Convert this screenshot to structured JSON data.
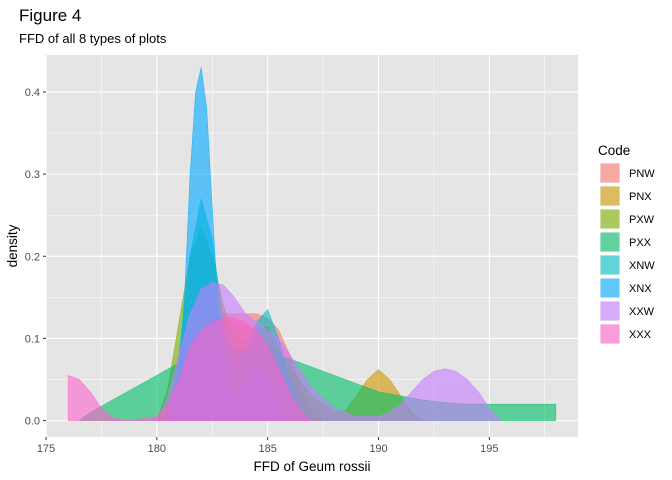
{
  "chart_data": {
    "type": "area",
    "title": "Figure 4",
    "subtitle": "FFD of all 8 types of plots",
    "xlabel": "FFD of Geum rossii",
    "ylabel": "density",
    "xlim": [
      175,
      199
    ],
    "ylim": [
      -0.02,
      0.445
    ],
    "x_ticks": [
      175,
      180,
      185,
      190,
      195
    ],
    "y_ticks": [
      0.0,
      0.1,
      0.2,
      0.3,
      0.4
    ],
    "y_tick_labels": [
      "0.0",
      "0.1",
      "0.2",
      "0.3",
      "0.4"
    ],
    "grid": true,
    "background": "#e5e5e5",
    "fill_opacity": 0.6,
    "legend": {
      "title": "Code",
      "position": "right"
    },
    "series": [
      {
        "name": "PNW",
        "color": "#f8766d",
        "x": [
          180,
          180.5,
          181,
          181.5,
          182,
          182.5,
          183,
          183.5,
          184,
          184.5,
          185,
          185.5,
          186,
          186.5,
          187,
          187.5
        ],
        "y": [
          0,
          0.012,
          0.04,
          0.08,
          0.11,
          0.125,
          0.13,
          0.13,
          0.13,
          0.13,
          0.125,
          0.11,
          0.08,
          0.04,
          0.012,
          0
        ]
      },
      {
        "name": "PNX",
        "color": "#cd9600",
        "x": [
          180,
          180.5,
          181,
          181.5,
          182,
          182.5,
          183,
          183.5,
          184,
          184.5,
          185,
          185.5,
          186,
          187,
          188,
          188.5,
          189,
          189.5,
          190,
          190.5,
          191,
          191.5,
          192
        ],
        "y": [
          0,
          0.02,
          0.06,
          0.1,
          0.12,
          0.125,
          0.125,
          0.12,
          0.115,
          0.11,
          0.1,
          0.085,
          0.065,
          0.03,
          0.01,
          0.012,
          0.03,
          0.05,
          0.062,
          0.05,
          0.03,
          0.01,
          0
        ]
      },
      {
        "name": "PXW",
        "color": "#7cae00",
        "x": [
          180,
          180.5,
          181,
          181.5,
          182,
          182.5,
          183,
          183.5,
          184,
          184.5,
          185,
          185.5,
          186,
          186.5,
          187
        ],
        "y": [
          0,
          0.04,
          0.12,
          0.2,
          0.235,
          0.2,
          0.14,
          0.1,
          0.095,
          0.11,
          0.115,
          0.09,
          0.05,
          0.015,
          0
        ]
      },
      {
        "name": "PXX",
        "color": "#00be67",
        "x": [
          176.5,
          177,
          178,
          179,
          180,
          181,
          182,
          183,
          184,
          185,
          186,
          187,
          188,
          189,
          190,
          191,
          192,
          193,
          194,
          195,
          195.5,
          196,
          196.5,
          197,
          198
        ],
        "y": [
          0,
          0.01,
          0.025,
          0.04,
          0.055,
          0.07,
          0.08,
          0.09,
          0.085,
          0.08,
          0.075,
          0.065,
          0.055,
          0.045,
          0.035,
          0.03,
          0.025,
          0.022,
          0.02,
          0.02,
          0.02,
          0.02,
          0.02,
          0.02,
          0.02
        ]
      },
      {
        "name": "XNW",
        "color": "#00bfc4",
        "x": [
          180.5,
          181,
          181.5,
          182,
          182.5,
          183,
          183.5,
          184,
          184.5,
          185,
          185.5,
          186,
          186.5,
          187
        ],
        "y": [
          0,
          0.08,
          0.2,
          0.27,
          0.22,
          0.12,
          0.07,
          0.08,
          0.12,
          0.135,
          0.1,
          0.05,
          0.015,
          0
        ]
      },
      {
        "name": "XNX",
        "color": "#00a9ff",
        "x": [
          180.5,
          181,
          181.25,
          181.5,
          181.75,
          182,
          182.25,
          182.5,
          182.75,
          183,
          183.5,
          184,
          184.5,
          185,
          185.5,
          186
        ],
        "y": [
          0,
          0.06,
          0.15,
          0.3,
          0.4,
          0.43,
          0.38,
          0.26,
          0.14,
          0.07,
          0.03,
          0.04,
          0.06,
          0.05,
          0.02,
          0
        ]
      },
      {
        "name": "XXW",
        "color": "#c77cff",
        "x": [
          180,
          180.5,
          181,
          181.5,
          182,
          182.5,
          183,
          183.5,
          184,
          184.5,
          185,
          185.5,
          186,
          186.5,
          187,
          188,
          189,
          190,
          190.5,
          191,
          191.5,
          192,
          192.5,
          193,
          193.5,
          194,
          194.5,
          195,
          195.5
        ],
        "y": [
          0,
          0.03,
          0.08,
          0.13,
          0.16,
          0.168,
          0.165,
          0.15,
          0.13,
          0.12,
          0.11,
          0.1,
          0.08,
          0.06,
          0.04,
          0.015,
          0.005,
          0.005,
          0.01,
          0.02,
          0.035,
          0.05,
          0.06,
          0.063,
          0.06,
          0.05,
          0.035,
          0.015,
          0
        ]
      },
      {
        "name": "XXX",
        "color": "#ff61cc",
        "x": [
          176,
          176.5,
          177,
          177.5,
          178,
          178.5,
          179,
          180,
          180.5,
          181,
          181.5,
          182,
          182.5,
          183,
          183.5,
          184,
          184.5,
          185,
          185.5,
          186,
          186.5,
          187
        ],
        "y": [
          0.055,
          0.05,
          0.035,
          0.015,
          0.004,
          0.001,
          0.001,
          0.005,
          0.02,
          0.05,
          0.09,
          0.11,
          0.12,
          0.125,
          0.125,
          0.12,
          0.11,
          0.09,
          0.065,
          0.035,
          0.012,
          0
        ]
      }
    ]
  }
}
